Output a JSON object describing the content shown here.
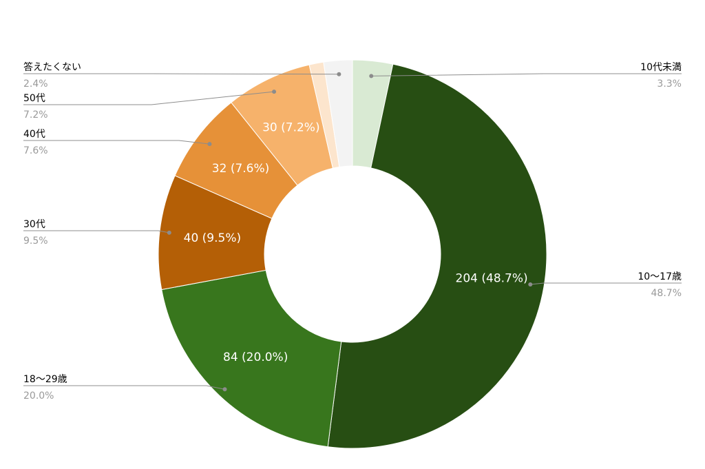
{
  "chart_data": {
    "type": "pie",
    "donut": true,
    "title": "",
    "slices": [
      {
        "label": "10代未満",
        "value": 14,
        "percent": "3.3%",
        "data_label": "",
        "color": "#d9ead3"
      },
      {
        "label": "10～17歳",
        "value": 204,
        "percent": "48.7%",
        "data_label": "204 (48.7%)",
        "color": "#274e13"
      },
      {
        "label": "18～29歳",
        "value": 84,
        "percent": "20.0%",
        "data_label": "84 (20.0%)",
        "color": "#38761d"
      },
      {
        "label": "30代",
        "value": 40,
        "percent": "9.5%",
        "data_label": "40 (9.5%)",
        "color": "#b45f06"
      },
      {
        "label": "40代",
        "value": 32,
        "percent": "7.6%",
        "data_label": "32 (7.6%)",
        "color": "#e69138"
      },
      {
        "label": "50代",
        "value": 30,
        "percent": "7.2%",
        "data_label": "30 (7.2%)",
        "color": "#f6b26b"
      },
      {
        "label": "",
        "value": 5,
        "percent": "",
        "data_label": "",
        "color": "#fce5cd"
      },
      {
        "label": "答えたくない",
        "value": 10,
        "percent": "2.4%",
        "data_label": "",
        "color": "#f3f3f3"
      }
    ],
    "legend_placement": "callout labels around chart"
  }
}
